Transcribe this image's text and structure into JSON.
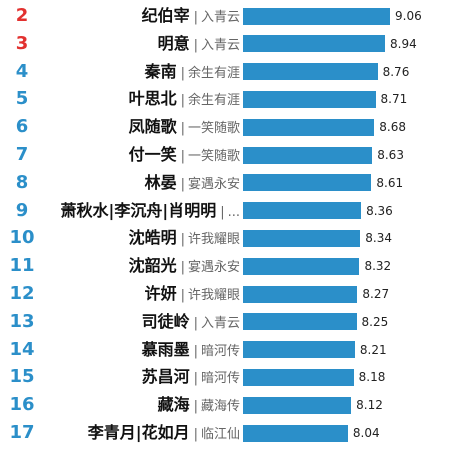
{
  "colors": {
    "bar": "#2b8fc9",
    "rank_top": "#e2312f",
    "rank_rest": "#2b8fc9"
  },
  "chart_data": {
    "type": "bar",
    "orientation": "horizontal",
    "xlim": [
      0,
      9.06
    ],
    "items": [
      {
        "rank": "2",
        "name": "纪伯宰",
        "show": "入青云",
        "value": 9.06
      },
      {
        "rank": "3",
        "name": "明意",
        "show": "入青云",
        "value": 8.94
      },
      {
        "rank": "4",
        "name": "秦南",
        "show": "余生有涯",
        "value": 8.76
      },
      {
        "rank": "5",
        "name": "叶思北",
        "show": "余生有涯",
        "value": 8.71
      },
      {
        "rank": "6",
        "name": "凤随歌",
        "show": "一笑随歌",
        "value": 8.68
      },
      {
        "rank": "7",
        "name": "付一笑",
        "show": "一笑随歌",
        "value": 8.63
      },
      {
        "rank": "8",
        "name": "林晏",
        "show": "宴遇永安",
        "value": 8.61
      },
      {
        "rank": "9",
        "name": "萧秋水|李沉舟|肖明明",
        "show": "...",
        "value": 8.36
      },
      {
        "rank": "10",
        "name": "沈皓明",
        "show": "许我耀眼",
        "value": 8.34
      },
      {
        "rank": "11",
        "name": "沈韶光",
        "show": "宴遇永安",
        "value": 8.32
      },
      {
        "rank": "12",
        "name": "许妍",
        "show": "许我耀眼",
        "value": 8.27
      },
      {
        "rank": "13",
        "name": "司徒岭",
        "show": "入青云",
        "value": 8.25
      },
      {
        "rank": "14",
        "name": "慕雨墨",
        "show": "暗河传",
        "value": 8.21
      },
      {
        "rank": "15",
        "name": "苏昌河",
        "show": "暗河传",
        "value": 8.18
      },
      {
        "rank": "16",
        "name": "藏海",
        "show": "藏海传",
        "value": 8.12
      },
      {
        "rank": "17",
        "name": "李青月|花如月",
        "show": "临江仙",
        "value": 8.04
      }
    ]
  }
}
